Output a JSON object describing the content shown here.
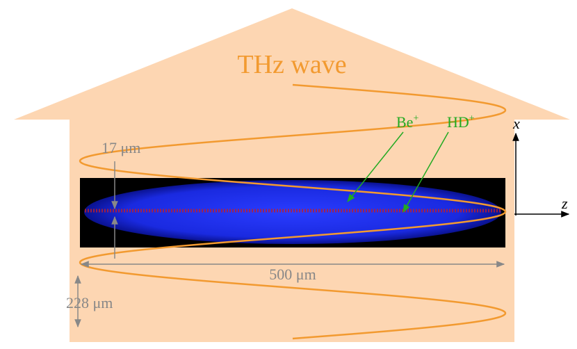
{
  "title": "THz wave",
  "ions": {
    "be": {
      "base": "Be",
      "charge": "+"
    },
    "hd": {
      "base": "HD",
      "charge": "+"
    }
  },
  "axes": {
    "x": "x",
    "z": "z"
  },
  "dimensions": {
    "waist": "17 μm",
    "length": "500 μm",
    "period": "228 μm"
  }
}
